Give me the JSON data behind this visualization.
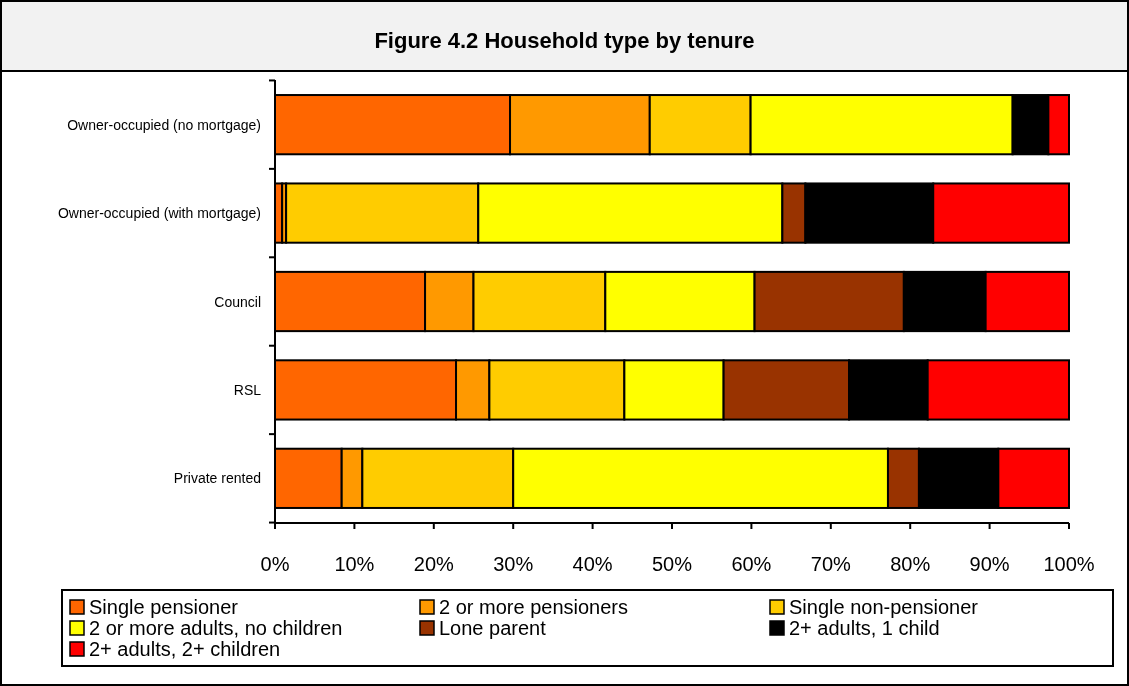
{
  "chart_data": {
    "type": "bar",
    "title": "Figure 4.2 Household type by tenure",
    "orientation": "horizontal",
    "stacked": true,
    "categories": [
      "Owner-occupied (no mortgage)",
      "Owner-occupied (with mortgage)",
      "Council",
      "RSL",
      "Private rented"
    ],
    "series": [
      {
        "name": "Single pensioner",
        "color": "#ff6600",
        "values": [
          29.6,
          0.9,
          18.9,
          22.8,
          8.4
        ]
      },
      {
        "name": "2 or more pensioners",
        "color": "#ff9900",
        "values": [
          17.6,
          0.5,
          6.1,
          4.2,
          2.6
        ]
      },
      {
        "name": "Single non-pensioner",
        "color": "#ffcc00",
        "values": [
          12.7,
          24.2,
          16.6,
          17.0,
          19.0
        ]
      },
      {
        "name": "2 or more adults, no children",
        "color": "#ffff00",
        "values": [
          33.0,
          38.3,
          18.8,
          12.5,
          47.2
        ]
      },
      {
        "name": "Lone parent",
        "color": "#993300",
        "values": [
          null,
          2.9,
          18.8,
          15.8,
          3.9
        ]
      },
      {
        "name": "2+ adults, 1 child",
        "color": "#000000",
        "values": [
          4.5,
          16.1,
          10.3,
          9.9,
          10.0
        ]
      },
      {
        "name": "2+ adults, 2+ children",
        "color": "#ff0000",
        "values": [
          2.6,
          17.1,
          10.5,
          17.8,
          8.9
        ]
      }
    ],
    "xlim": [
      0,
      100
    ],
    "xticks": [
      {
        "value": 0,
        "label": "0%"
      },
      {
        "value": 10,
        "label": "10%"
      },
      {
        "value": 20,
        "label": "20%"
      },
      {
        "value": 30,
        "label": "30%"
      },
      {
        "value": 40,
        "label": "40%"
      },
      {
        "value": 50,
        "label": "50%"
      },
      {
        "value": 60,
        "label": "60%"
      },
      {
        "value": 70,
        "label": "70%"
      },
      {
        "value": 80,
        "label": "80%"
      },
      {
        "value": 90,
        "label": "90%"
      },
      {
        "value": 100,
        "label": "100%"
      }
    ],
    "grid": false,
    "legend": "bottom"
  }
}
